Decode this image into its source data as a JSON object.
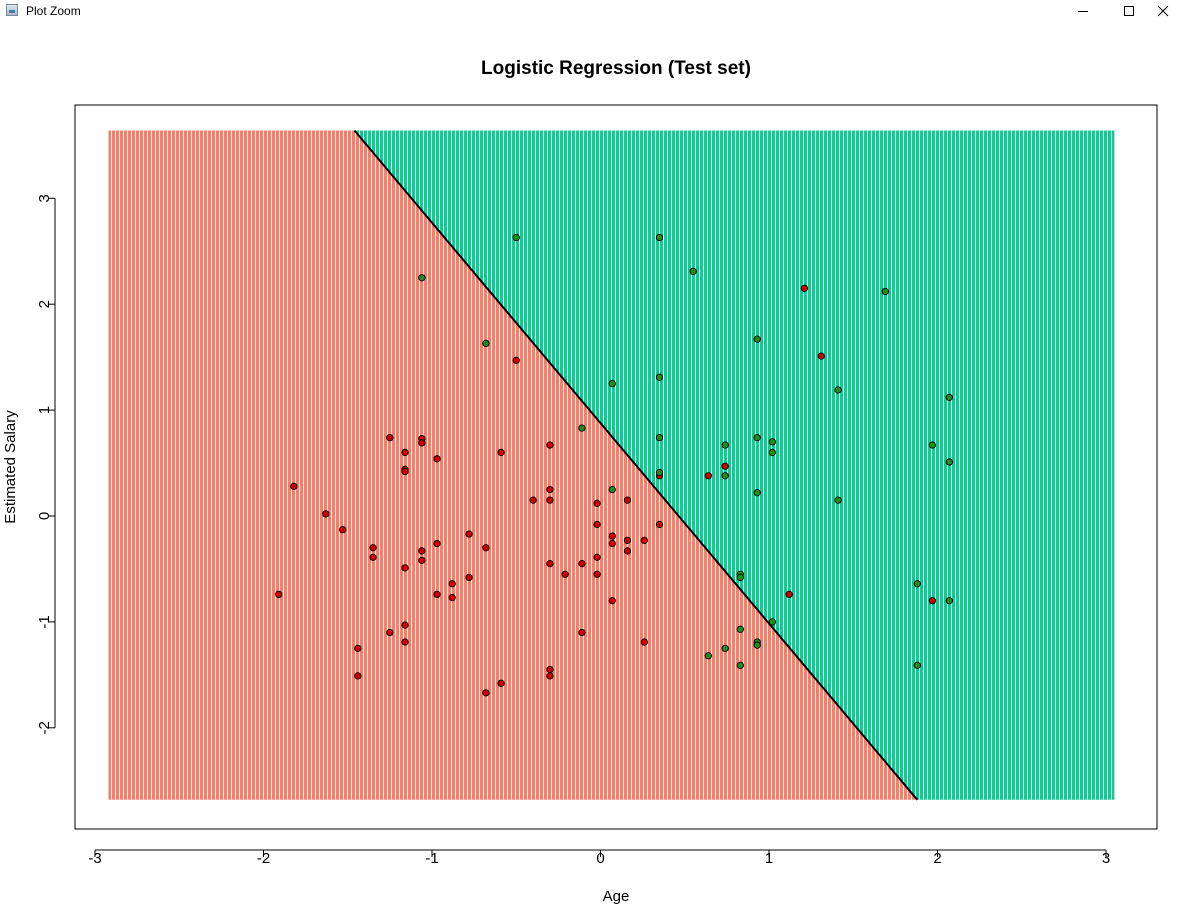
{
  "window": {
    "title": "Plot Zoom",
    "controls": [
      "minimize",
      "maximize",
      "close"
    ]
  },
  "chart_data": {
    "type": "scatter",
    "title": "Logistic Regression (Test set)",
    "xlabel": "Age",
    "ylabel": "Estimated Salary",
    "xlim": [
      -3.1,
      3.3
    ],
    "ylim": [
      -2.9,
      3.9
    ],
    "x_ticks": [
      -3,
      -2,
      -1,
      0,
      1,
      2,
      3
    ],
    "y_ticks": [
      -2,
      -1,
      0,
      1,
      2,
      3
    ],
    "grid": false,
    "background_regions": {
      "x_range": [
        -2.92,
        3.05
      ],
      "y_range": [
        -2.68,
        3.64
      ],
      "boundary_line": [
        [
          -1.46,
          3.64
        ],
        [
          1.88,
          -2.68
        ]
      ],
      "class0_color": "#fa8072",
      "class1_color": "#2fc994",
      "point_class0_color": "#cc0000",
      "point_class1_color": "#228b22"
    },
    "series": [
      {
        "class": 0,
        "color": "#cc0000",
        "points": [
          [
            1.21,
            2.15
          ],
          [
            1.31,
            1.51
          ],
          [
            -0.5,
            1.47
          ],
          [
            -1.25,
            0.74
          ],
          [
            -1.06,
            0.73
          ],
          [
            -1.06,
            0.69
          ],
          [
            -0.3,
            0.67
          ],
          [
            -0.59,
            0.6
          ],
          [
            -1.16,
            0.6
          ],
          [
            -0.97,
            0.54
          ],
          [
            0.74,
            0.47
          ],
          [
            -1.16,
            0.44
          ],
          [
            -1.16,
            0.42
          ],
          [
            0.64,
            0.38
          ],
          [
            0.35,
            0.38
          ],
          [
            -1.82,
            0.28
          ],
          [
            -0.3,
            0.25
          ],
          [
            -0.4,
            0.15
          ],
          [
            -0.3,
            0.15
          ],
          [
            -0.02,
            0.12
          ],
          [
            0.16,
            0.15
          ],
          [
            -1.63,
            0.02
          ],
          [
            0.35,
            -0.08
          ],
          [
            -0.02,
            -0.08
          ],
          [
            -1.53,
            -0.13
          ],
          [
            0.07,
            -0.19
          ],
          [
            -0.78,
            -0.17
          ],
          [
            0.16,
            -0.23
          ],
          [
            0.26,
            -0.23
          ],
          [
            -0.97,
            -0.26
          ],
          [
            0.07,
            -0.26
          ],
          [
            -1.35,
            -0.3
          ],
          [
            -0.68,
            -0.3
          ],
          [
            -1.06,
            -0.33
          ],
          [
            0.16,
            -0.33
          ],
          [
            -1.35,
            -0.39
          ],
          [
            -0.02,
            -0.39
          ],
          [
            -1.06,
            -0.42
          ],
          [
            -0.3,
            -0.45
          ],
          [
            -0.11,
            -0.45
          ],
          [
            -1.16,
            -0.49
          ],
          [
            -0.21,
            -0.55
          ],
          [
            -0.02,
            -0.55
          ],
          [
            -0.78,
            -0.58
          ],
          [
            -0.88,
            -0.64
          ],
          [
            -1.91,
            -0.74
          ],
          [
            -0.97,
            -0.74
          ],
          [
            1.12,
            -0.74
          ],
          [
            -0.88,
            -0.77
          ],
          [
            1.97,
            -0.8
          ],
          [
            0.07,
            -0.8
          ],
          [
            -1.16,
            -1.03
          ],
          [
            -1.25,
            -1.1
          ],
          [
            -0.11,
            -1.1
          ],
          [
            -1.16,
            -1.19
          ],
          [
            0.26,
            -1.19
          ],
          [
            -1.44,
            -1.25
          ],
          [
            -0.3,
            -1.45
          ],
          [
            -1.44,
            -1.51
          ],
          [
            -0.3,
            -1.51
          ],
          [
            -0.59,
            -1.58
          ],
          [
            -0.68,
            -1.67
          ]
        ]
      },
      {
        "class": 1,
        "color": "#228b22",
        "points": [
          [
            -0.5,
            2.63
          ],
          [
            0.35,
            2.63
          ],
          [
            0.55,
            2.31
          ],
          [
            -1.06,
            2.25
          ],
          [
            1.69,
            2.12
          ],
          [
            0.93,
            1.67
          ],
          [
            -0.68,
            1.63
          ],
          [
            0.07,
            1.25
          ],
          [
            0.35,
            1.31
          ],
          [
            1.41,
            1.19
          ],
          [
            2.07,
            1.12
          ],
          [
            -0.11,
            0.83
          ],
          [
            0.35,
            0.74
          ],
          [
            0.93,
            0.74
          ],
          [
            1.02,
            0.7
          ],
          [
            0.74,
            0.67
          ],
          [
            1.97,
            0.67
          ],
          [
            1.02,
            0.6
          ],
          [
            2.07,
            0.51
          ],
          [
            0.35,
            0.41
          ],
          [
            0.74,
            0.38
          ],
          [
            0.07,
            0.25
          ],
          [
            0.93,
            0.22
          ],
          [
            1.41,
            0.15
          ],
          [
            0.83,
            -0.55
          ],
          [
            0.83,
            -0.58
          ],
          [
            1.88,
            -0.64
          ],
          [
            2.07,
            -0.8
          ],
          [
            1.02,
            -1.0
          ],
          [
            0.83,
            -1.07
          ],
          [
            0.93,
            -1.19
          ],
          [
            0.93,
            -1.22
          ],
          [
            0.74,
            -1.25
          ],
          [
            0.64,
            -1.32
          ],
          [
            0.83,
            -1.41
          ],
          [
            1.88,
            -1.41
          ]
        ]
      }
    ]
  }
}
